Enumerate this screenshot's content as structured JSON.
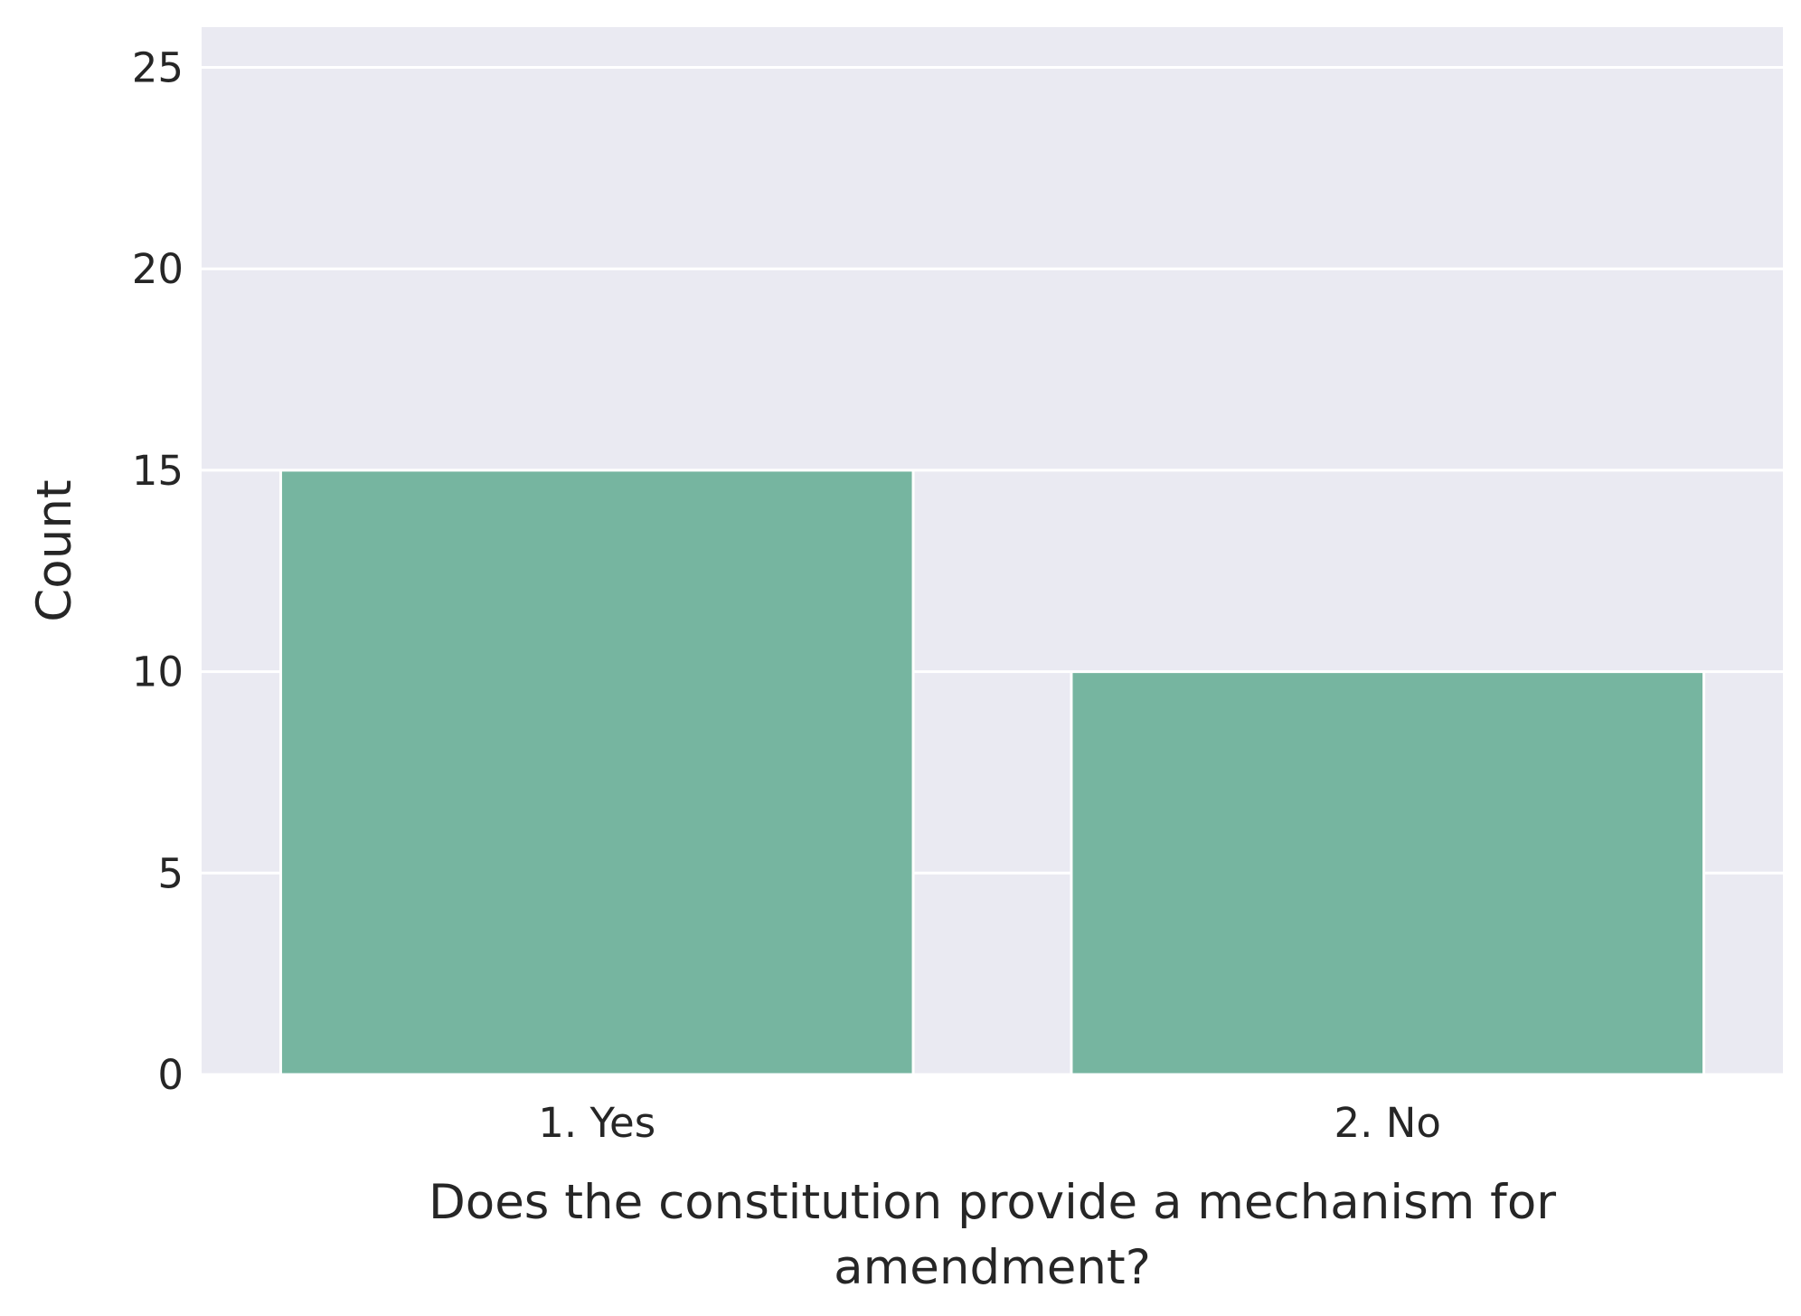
{
  "chart_data": {
    "type": "bar",
    "categories": [
      "1. Yes",
      "2. No"
    ],
    "values": [
      15,
      10
    ],
    "title": "",
    "xlabel_lines": [
      "Does the constitution provide a mechanism for",
      "amendment?"
    ],
    "ylabel": "Count",
    "ylim": [
      0,
      26
    ],
    "yticks": [
      0,
      5,
      10,
      15,
      20,
      25
    ],
    "grid": true,
    "colors": {
      "bar": "#76b5a0",
      "plot_background": "#eaeaf2",
      "grid": "#ffffff",
      "text": "#262626"
    }
  }
}
